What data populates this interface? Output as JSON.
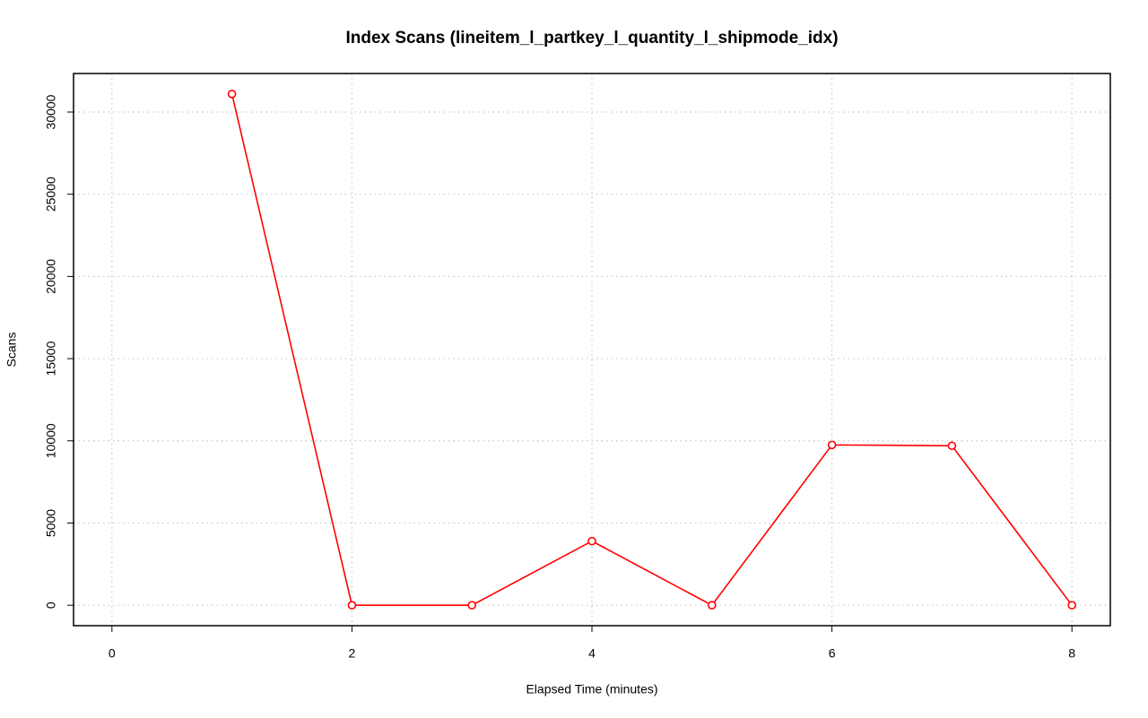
{
  "chart_data": {
    "type": "line",
    "title": "Index Scans (lineitem_l_partkey_l_quantity_l_shipmode_idx)",
    "x_label": "Elapsed Time (minutes)",
    "y_label": "Scans",
    "x": [
      1,
      2,
      3,
      4,
      5,
      6,
      7,
      8
    ],
    "series": [
      {
        "name": "Scans",
        "color": "#ff0000",
        "values": [
          31100,
          0,
          0,
          3900,
          0,
          9750,
          9700,
          0
        ]
      }
    ],
    "xlim": [
      -0.32,
      8.32
    ],
    "ylim": [
      -1244,
      32344
    ],
    "xticks": [
      0,
      2,
      4,
      6,
      8
    ],
    "yticks": [
      0,
      5000,
      10000,
      15000,
      20000,
      25000,
      30000
    ],
    "grid": true
  }
}
